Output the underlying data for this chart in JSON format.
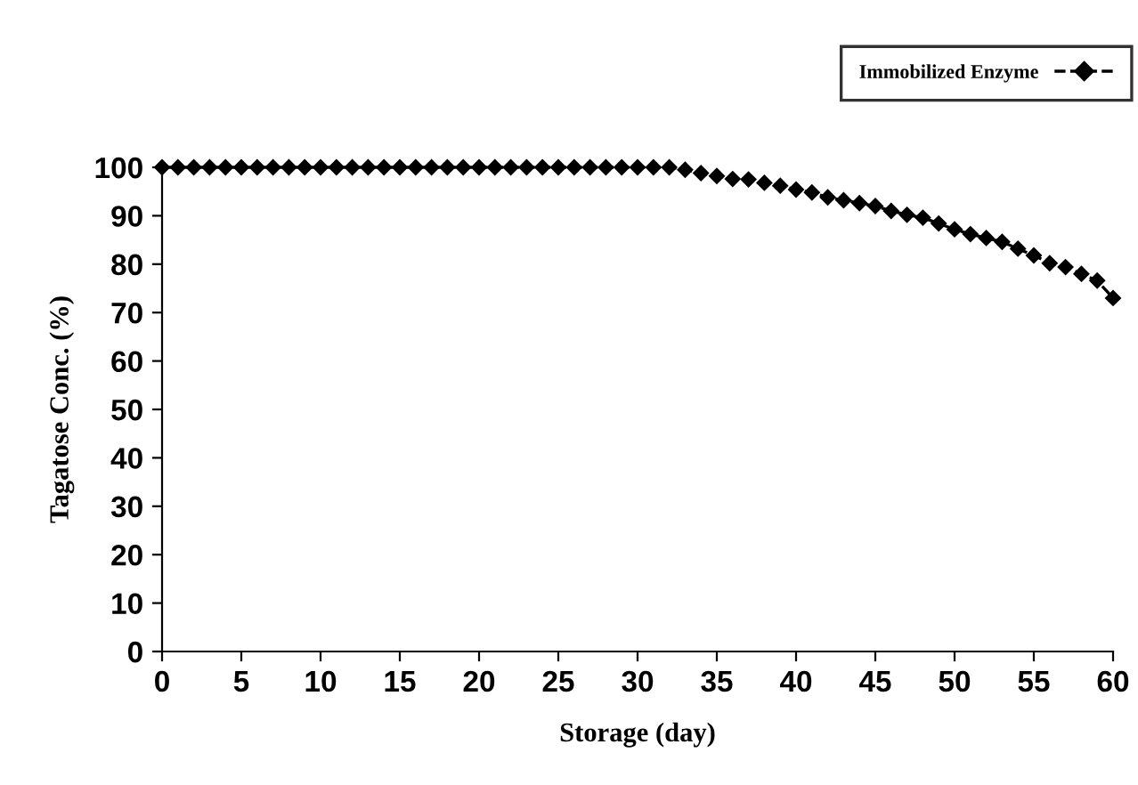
{
  "chart_data": {
    "type": "line",
    "xlabel": "Storage (day)",
    "ylabel": "Tagatose Conc. (%)",
    "x": [
      0,
      1,
      2,
      3,
      4,
      5,
      6,
      7,
      8,
      9,
      10,
      11,
      12,
      13,
      14,
      15,
      16,
      17,
      18,
      19,
      20,
      21,
      22,
      23,
      24,
      25,
      26,
      27,
      28,
      29,
      30,
      31,
      32,
      33,
      34,
      35,
      36,
      37,
      38,
      39,
      40,
      41,
      42,
      43,
      44,
      45,
      46,
      47,
      48,
      49,
      50,
      51,
      52,
      53,
      54,
      55,
      56,
      57,
      58,
      59,
      60
    ],
    "series": [
      {
        "name": "Immobilized Enzyme",
        "color": "#000000",
        "values": [
          100,
          100,
          100,
          100,
          100,
          100,
          100,
          100,
          100,
          100,
          100,
          100,
          100,
          100,
          100,
          100,
          100,
          100,
          100,
          100,
          100,
          100,
          100,
          100,
          100,
          100,
          100,
          100,
          100,
          100,
          100,
          100,
          100,
          99.5,
          98.8,
          98.2,
          97.6,
          97.5,
          96.8,
          96.2,
          95.4,
          94.8,
          93.8,
          93.2,
          92.6,
          92,
          91,
          90.2,
          89.6,
          88.4,
          87.2,
          86.2,
          85.4,
          84.6,
          83.2,
          81.8,
          80.2,
          79.4,
          78,
          76.6,
          73
        ]
      }
    ],
    "xlim": [
      0,
      60
    ],
    "xticks": [
      0,
      5,
      10,
      15,
      20,
      25,
      30,
      35,
      40,
      45,
      50,
      55,
      60
    ],
    "ylim": [
      0,
      100
    ],
    "yticks": [
      0,
      10,
      20,
      30,
      40,
      50,
      60,
      70,
      80,
      90,
      100
    ],
    "marker": "diamond",
    "line_style": "dashed",
    "legend": "top right",
    "grid": false
  }
}
